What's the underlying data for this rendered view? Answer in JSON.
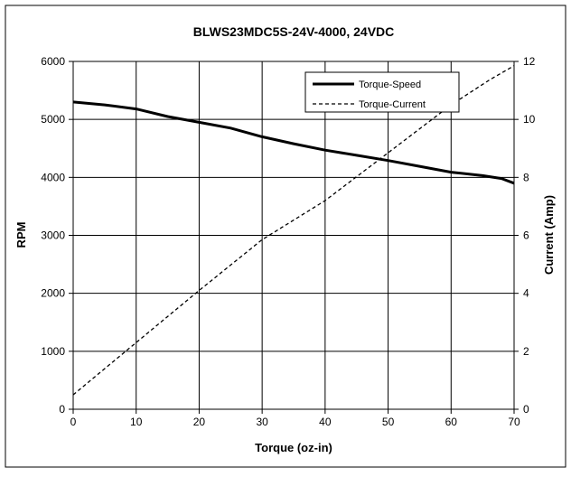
{
  "chart_data": {
    "type": "line",
    "title": "BLWS23MDC5S-24V-4000,  24VDC",
    "xlabel": "Torque (oz-in)",
    "ylabel": "RPM",
    "y2label": "Current (Amp)",
    "xlim": [
      0,
      70
    ],
    "ylim": [
      0,
      6000
    ],
    "y2lim": [
      0,
      12
    ],
    "x_ticks": [
      0,
      10,
      20,
      30,
      40,
      50,
      60,
      70
    ],
    "y_ticks": [
      0,
      1000,
      2000,
      3000,
      4000,
      5000,
      6000
    ],
    "y2_ticks": [
      0,
      2,
      4,
      6,
      8,
      10,
      12
    ],
    "grid": true,
    "legend_position": "top-right",
    "series": [
      {
        "name": "Torque-Speed",
        "axis": "left",
        "style": "solid",
        "x": [
          0,
          5,
          10,
          15,
          20,
          25,
          30,
          35,
          40,
          45,
          50,
          55,
          60,
          65,
          68,
          70
        ],
        "y": [
          5300,
          5250,
          5180,
          5050,
          4950,
          4850,
          4700,
          4580,
          4470,
          4380,
          4290,
          4190,
          4090,
          4030,
          3980,
          3900
        ]
      },
      {
        "name": "Torque-Current",
        "axis": "right",
        "style": "dashed",
        "x": [
          0,
          10,
          20,
          30,
          40,
          50,
          60,
          66,
          70
        ],
        "y": [
          0.5,
          2.3,
          4.1,
          5.85,
          7.2,
          8.85,
          10.5,
          11.35,
          11.85
        ]
      }
    ]
  }
}
